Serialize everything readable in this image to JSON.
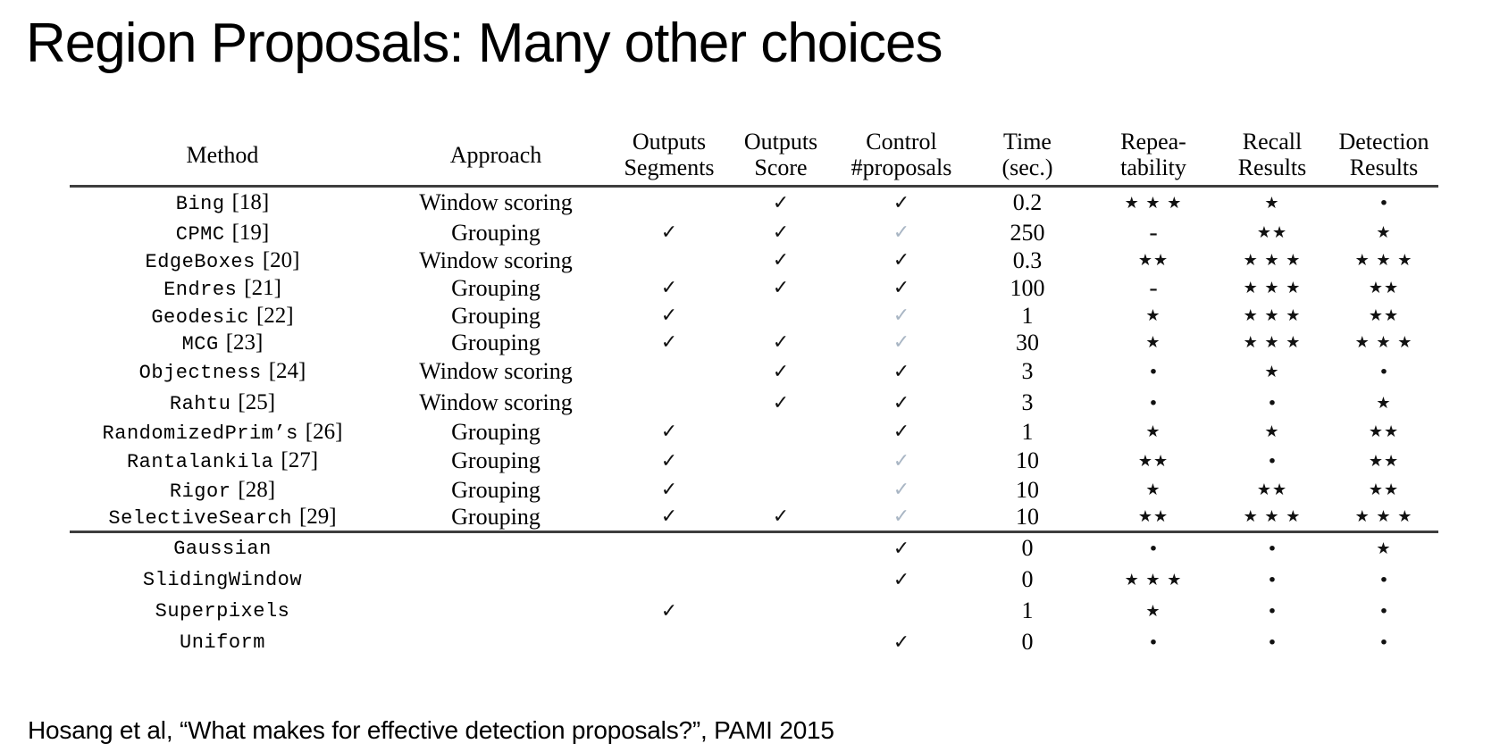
{
  "title": "Region Proposals: Many other choices",
  "citation": "Hosang et al, “What makes for effective detection proposals?”, PAMI 2015",
  "table": {
    "headers": {
      "method": "Method",
      "approach": "Approach",
      "outputs_segments": [
        "Outputs",
        "Segments"
      ],
      "outputs_score": [
        "Outputs",
        "Score"
      ],
      "control_proposals": [
        "Control",
        "#proposals"
      ],
      "time": [
        "Time",
        "(sec.)"
      ],
      "repeatability": [
        "Repea-",
        "tability"
      ],
      "recall": [
        "Recall",
        "Results"
      ],
      "detection": [
        "Detection",
        "Results"
      ]
    },
    "symbols": {
      "check": "✓",
      "star": "★",
      "no_rating_dot": "·",
      "not_available_dash": "-"
    },
    "colors": {
      "check_black": "#111111",
      "check_gray": "#a9b6c4",
      "rule": "#3e3e3e"
    },
    "sections": [
      {
        "name": "proposal-methods",
        "rows": [
          {
            "method": "Bing",
            "ref": "[18]",
            "approach": "Window scoring",
            "segments": "",
            "score": "✓",
            "control": "✓",
            "control_gray": false,
            "time": "0.2",
            "repeatability": "★ ★ ★",
            "recall": "★",
            "detection": "·"
          },
          {
            "method": "CPMC",
            "ref": "[19]",
            "approach": "Grouping",
            "segments": "✓",
            "score": "✓",
            "control": "✓",
            "control_gray": true,
            "time": "250",
            "repeatability": "-",
            "recall": "★★",
            "detection": "★"
          },
          {
            "method": "EdgeBoxes",
            "ref": "[20]",
            "approach": "Window scoring",
            "segments": "",
            "score": "✓",
            "control": "✓",
            "control_gray": false,
            "time": "0.3",
            "repeatability": "★★",
            "recall": "★ ★ ★",
            "detection": "★ ★ ★"
          },
          {
            "method": "Endres",
            "ref": "[21]",
            "approach": "Grouping",
            "segments": "✓",
            "score": "✓",
            "control": "✓",
            "control_gray": false,
            "time": "100",
            "repeatability": "-",
            "recall": "★ ★ ★",
            "detection": "★★"
          },
          {
            "method": "Geodesic",
            "ref": "[22]",
            "approach": "Grouping",
            "segments": "✓",
            "score": "",
            "control": "✓",
            "control_gray": true,
            "time": "1",
            "repeatability": "★",
            "recall": "★ ★ ★",
            "detection": "★★"
          },
          {
            "method": "MCG",
            "ref": "[23]",
            "approach": "Grouping",
            "segments": "✓",
            "score": "✓",
            "control": "✓",
            "control_gray": true,
            "time": "30",
            "repeatability": "★",
            "recall": "★ ★ ★",
            "detection": "★ ★ ★"
          },
          {
            "method": "Objectness",
            "ref": "[24]",
            "approach": "Window scoring",
            "segments": "",
            "score": "✓",
            "control": "✓",
            "control_gray": false,
            "time": "3",
            "repeatability": "·",
            "recall": "★",
            "detection": "·"
          },
          {
            "method": "Rahtu",
            "ref": "[25]",
            "approach": "Window scoring",
            "segments": "",
            "score": "✓",
            "control": "✓",
            "control_gray": false,
            "time": "3",
            "repeatability": "·",
            "recall": "·",
            "detection": "★"
          },
          {
            "method": "RandomizedPrim’s",
            "ref": "[26]",
            "approach": "Grouping",
            "segments": "✓",
            "score": "",
            "control": "✓",
            "control_gray": false,
            "time": "1",
            "repeatability": "★",
            "recall": "★",
            "detection": "★★"
          },
          {
            "method": "Rantalankila",
            "ref": "[27]",
            "approach": "Grouping",
            "segments": "✓",
            "score": "",
            "control": "✓",
            "control_gray": true,
            "time": "10",
            "repeatability": "★★",
            "recall": "·",
            "detection": "★★"
          },
          {
            "method": "Rigor",
            "ref": "[28]",
            "approach": "Grouping",
            "segments": "✓",
            "score": "",
            "control": "✓",
            "control_gray": true,
            "time": "10",
            "repeatability": "★",
            "recall": "★★",
            "detection": "★★"
          },
          {
            "method": "SelectiveSearch",
            "ref": "[29]",
            "approach": "Grouping",
            "segments": "✓",
            "score": "✓",
            "control": "✓",
            "control_gray": true,
            "time": "10",
            "repeatability": "★★",
            "recall": "★ ★ ★",
            "detection": "★ ★ ★"
          }
        ]
      },
      {
        "name": "baselines",
        "rows": [
          {
            "method": "Gaussian",
            "ref": "",
            "approach": "",
            "segments": "",
            "score": "",
            "control": "✓",
            "control_gray": false,
            "time": "0",
            "repeatability": "·",
            "recall": "·",
            "detection": "★"
          },
          {
            "method": "SlidingWindow",
            "ref": "",
            "approach": "",
            "segments": "",
            "score": "",
            "control": "✓",
            "control_gray": false,
            "time": "0",
            "repeatability": "★ ★ ★",
            "recall": "·",
            "detection": "·"
          },
          {
            "method": "Superpixels",
            "ref": "",
            "approach": "",
            "segments": "✓",
            "score": "",
            "control": "",
            "control_gray": false,
            "time": "1",
            "repeatability": "★",
            "recall": "·",
            "detection": "·"
          },
          {
            "method": "Uniform",
            "ref": "",
            "approach": "",
            "segments": "",
            "score": "",
            "control": "✓",
            "control_gray": false,
            "time": "0",
            "repeatability": "·",
            "recall": "·",
            "detection": "·"
          }
        ]
      }
    ]
  }
}
